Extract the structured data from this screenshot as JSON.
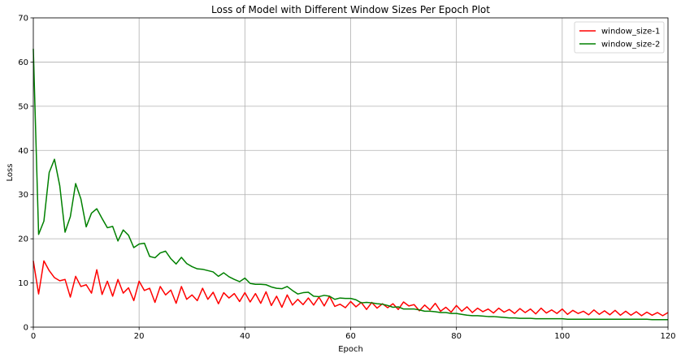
{
  "chart_data": {
    "type": "line",
    "title": "Loss of Model with Different Window Sizes Per Epoch Plot",
    "xlabel": "Epoch",
    "ylabel": "Loss",
    "xlim": [
      0,
      120
    ],
    "ylim": [
      0,
      70
    ],
    "x_ticks": [
      0,
      20,
      40,
      60,
      80,
      100,
      120
    ],
    "y_ticks": [
      0,
      10,
      20,
      30,
      40,
      50,
      60,
      70
    ],
    "grid": true,
    "legend_position": "top-right",
    "series": [
      {
        "name": "window_size-1",
        "color": "#ff0000",
        "values": [
          15.0,
          7.5,
          15.0,
          12.8,
          11.2,
          10.5,
          10.8,
          6.8,
          11.5,
          9.2,
          9.6,
          7.7,
          13.0,
          7.4,
          10.4,
          7.0,
          10.8,
          7.7,
          8.9,
          6.0,
          10.4,
          8.3,
          8.8,
          5.6,
          9.2,
          7.3,
          8.4,
          5.4,
          9.2,
          6.3,
          7.3,
          6.0,
          8.8,
          6.3,
          7.9,
          5.3,
          7.8,
          6.6,
          7.6,
          5.8,
          7.8,
          5.7,
          7.6,
          5.4,
          8.0,
          4.9,
          7.0,
          4.5,
          7.3,
          5.0,
          6.3,
          5.1,
          6.6,
          5.0,
          6.8,
          4.8,
          7.0,
          4.7,
          5.2,
          4.4,
          5.8,
          4.6,
          5.6,
          4.0,
          5.6,
          4.3,
          5.3,
          4.4,
          5.3,
          4.0,
          5.7,
          4.8,
          5.1,
          3.7,
          5.0,
          3.9,
          5.4,
          3.6,
          4.5,
          3.4,
          4.9,
          3.6,
          4.6,
          3.3,
          4.3,
          3.5,
          4.1,
          3.2,
          4.3,
          3.4,
          4.0,
          3.1,
          4.2,
          3.3,
          4.1,
          3.0,
          4.3,
          3.2,
          3.9,
          3.1,
          4.1,
          2.9,
          3.8,
          3.1,
          3.6,
          2.8,
          3.9,
          2.9,
          3.7,
          2.8,
          3.8,
          2.7,
          3.6,
          2.7,
          3.5,
          2.6,
          3.4,
          2.7,
          3.3,
          2.6,
          3.3
        ]
      },
      {
        "name": "window_size-2",
        "color": "#008000",
        "values": [
          63.0,
          21.0,
          24.0,
          35.0,
          38.0,
          32.0,
          21.5,
          25.0,
          32.5,
          29.0,
          22.7,
          25.8,
          26.8,
          24.6,
          22.5,
          22.8,
          19.5,
          22.0,
          20.8,
          18.0,
          18.8,
          19.0,
          16.0,
          15.7,
          16.8,
          17.2,
          15.5,
          14.3,
          15.8,
          14.4,
          13.7,
          13.2,
          13.1,
          12.8,
          12.5,
          11.5,
          12.3,
          11.4,
          10.8,
          10.3,
          11.1,
          9.9,
          9.7,
          9.7,
          9.6,
          9.1,
          8.8,
          8.7,
          9.2,
          8.3,
          7.5,
          7.8,
          7.9,
          7.0,
          6.9,
          7.2,
          7.0,
          6.3,
          6.6,
          6.5,
          6.5,
          6.2,
          5.5,
          5.6,
          5.5,
          5.3,
          5.2,
          4.9,
          4.5,
          4.6,
          4.1,
          4.1,
          4.1,
          3.9,
          3.6,
          3.6,
          3.5,
          3.3,
          3.3,
          3.1,
          3.1,
          2.9,
          2.7,
          2.6,
          2.6,
          2.5,
          2.4,
          2.4,
          2.3,
          2.2,
          2.1,
          2.1,
          2.0,
          2.0,
          2.0,
          1.9,
          1.9,
          1.9,
          1.9,
          1.9,
          1.9,
          1.8,
          1.8,
          1.8,
          1.8,
          1.8,
          1.8,
          1.8,
          1.8,
          1.8,
          1.8,
          1.8,
          1.8,
          1.8,
          1.8,
          1.8,
          1.8,
          1.7,
          1.7,
          1.7,
          1.7
        ]
      }
    ]
  }
}
